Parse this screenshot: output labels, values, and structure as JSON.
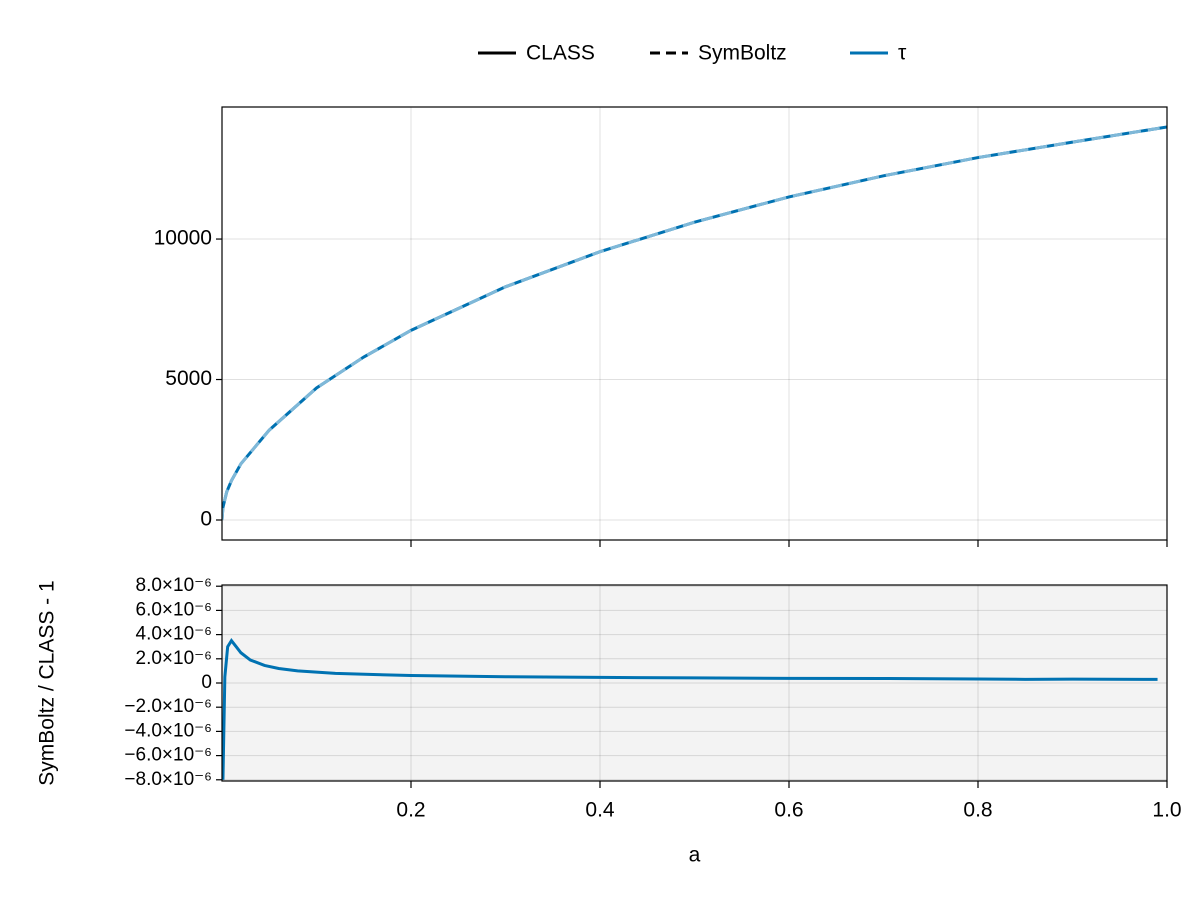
{
  "chart_data": [
    {
      "type": "line",
      "legend": [
        {
          "label": "CLASS",
          "color": "#000000",
          "linestyle": "solid"
        },
        {
          "label": "SymBoltz",
          "color": "#000000",
          "linestyle": "dashed"
        },
        {
          "label": "τ",
          "color": "#0072b2",
          "linestyle": "solid"
        }
      ],
      "x": [
        0,
        0.001,
        0.005,
        0.01,
        0.02,
        0.05,
        0.1,
        0.15,
        0.2,
        0.3,
        0.4,
        0.5,
        0.6,
        0.7,
        0.8,
        0.9,
        1.0
      ],
      "series": [
        {
          "color": "#0072b2",
          "linestyle": "solid",
          "values": [
            0,
            450,
            1000,
            1400,
            2000,
            3200,
            4700,
            5800,
            6750,
            8300,
            9550,
            10600,
            11500,
            12250,
            12900,
            13450,
            13990
          ]
        },
        {
          "color": "#7fb8d8",
          "linestyle": "dashed",
          "values": [
            0,
            450,
            1000,
            1400,
            2000,
            3200,
            4700,
            5800,
            6750,
            8300,
            9550,
            10600,
            11500,
            12250,
            12900,
            13450,
            13990
          ]
        }
      ],
      "xlim": [
        0,
        1
      ],
      "xticks": [
        0.2,
        0.4,
        0.6,
        0.8,
        1
      ],
      "show_x_tick_labels": false,
      "ylim": [
        -712,
        14700
      ],
      "yticks": [
        0,
        5000,
        10000
      ],
      "grid": true
    },
    {
      "type": "line",
      "xlabel": "a",
      "ylabel": "SymBoltz / CLASS - 1",
      "x": [
        0.001,
        0.003,
        0.006,
        0.01,
        0.015,
        0.02,
        0.03,
        0.045,
        0.06,
        0.08,
        0.12,
        0.16,
        0.2,
        0.3,
        0.4,
        0.5,
        0.6,
        0.7,
        0.8,
        0.85,
        0.9,
        0.99
      ],
      "series": [
        {
          "color": "#0072b2",
          "linestyle": "solid",
          "values": [
            -8e-06,
            5e-07,
            3e-06,
            3.5e-06,
            3e-06,
            2.5e-06,
            1.9e-06,
            1.45e-06,
            1.2e-06,
            1e-06,
            8e-07,
            7e-07,
            6.2e-07,
            5.2e-07,
            4.6e-07,
            4.2e-07,
            3.8e-07,
            3.7e-07,
            3.3e-07,
            3e-07,
            3.2e-07,
            3e-07
          ]
        }
      ],
      "xlim": [
        0,
        1
      ],
      "xticks": [
        0.2,
        0.4,
        0.6,
        0.8,
        {
          "value": 1,
          "label": "1.0"
        }
      ],
      "show_x_tick_labels": true,
      "ylim": [
        -8.1e-06,
        8.1e-06
      ],
      "yticks": [
        {
          "value": -8e-06,
          "label": "−8.0×10⁻⁶"
        },
        {
          "value": -6e-06,
          "label": "−6.0×10⁻⁶"
        },
        {
          "value": -4e-06,
          "label": "−4.0×10⁻⁶"
        },
        {
          "value": -2e-06,
          "label": "−2.0×10⁻⁶"
        },
        0,
        {
          "value": 2e-06,
          "label": "2.0×10⁻⁶"
        },
        {
          "value": 4e-06,
          "label": "4.0×10⁻⁶"
        },
        {
          "value": 6e-06,
          "label": "6.0×10⁻⁶"
        },
        {
          "value": 8e-06,
          "label": "8.0×10⁻⁶"
        }
      ],
      "grid": true,
      "background": "#f3f3f3"
    }
  ]
}
